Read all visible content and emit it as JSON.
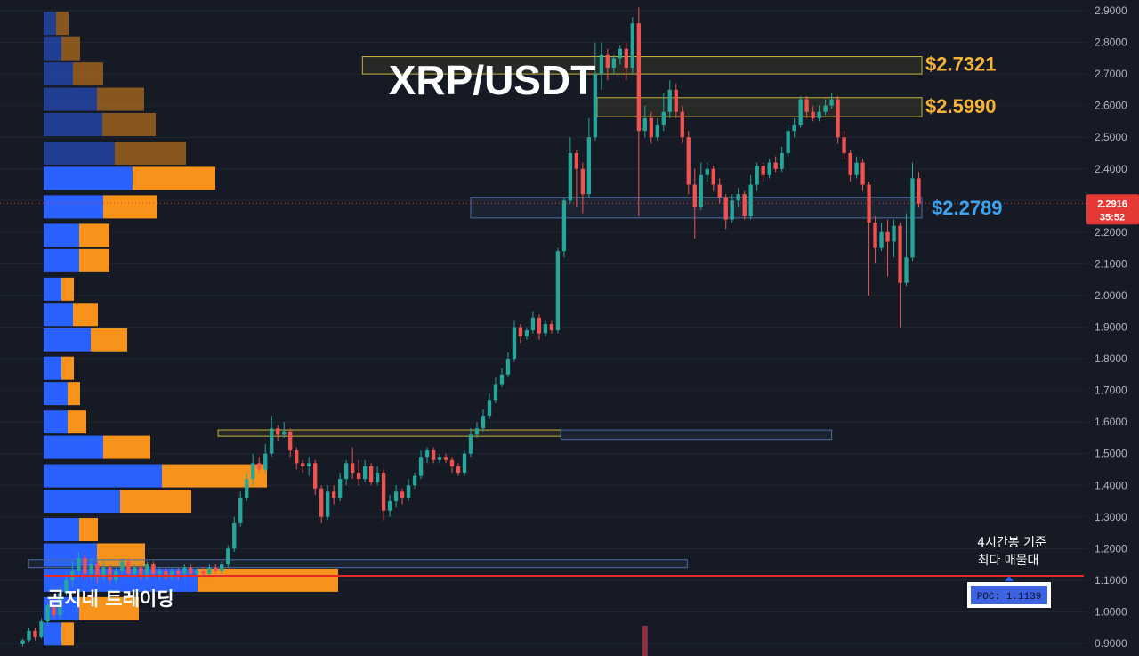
{
  "chart_data": {
    "type": "candlestick",
    "title": "XRP/USDT",
    "ylim": [
      0.88,
      2.92
    ],
    "yticks": [
      "2.9000",
      "2.8000",
      "2.7000",
      "2.6000",
      "2.5000",
      "2.4000",
      "2.3000",
      "2.2000",
      "2.1000",
      "2.0000",
      "1.9000",
      "1.8000",
      "1.7000",
      "1.6000",
      "1.5000",
      "1.4000",
      "1.3000",
      "1.2000",
      "1.1000",
      "1.0000",
      "0.9000"
    ],
    "current_price": "2.2916",
    "countdown": "35:52",
    "level_labels": [
      {
        "text": "$2.7321",
        "price": 2.7321,
        "color": "#f5b335"
      },
      {
        "text": "$2.5990",
        "price": 2.599,
        "color": "#f5b335"
      },
      {
        "text": "$2.2789",
        "price": 2.2789,
        "color": "#3ba4f0"
      }
    ],
    "zones": [
      {
        "kind": "supply",
        "top": 2.755,
        "bottom": 2.7,
        "start": 0.38
      },
      {
        "kind": "supply",
        "top": 2.625,
        "bottom": 2.565,
        "start": 0.64
      },
      {
        "kind": "support",
        "top": 2.31,
        "bottom": 2.245,
        "start": 0.5
      },
      {
        "kind": "supply",
        "top": 1.575,
        "bottom": 1.555,
        "start": 0.22,
        "end": 0.6
      },
      {
        "kind": "support",
        "top": 1.575,
        "bottom": 1.545,
        "start": 0.6,
        "end": 0.9
      },
      {
        "kind": "support",
        "top": 1.165,
        "bottom": 1.14,
        "start": 0.01,
        "end": 0.74
      }
    ],
    "poc": {
      "price": 1.1139,
      "label": "POC: 1.1139",
      "note": [
        "4시간봉 기준",
        "최다 매물대"
      ]
    },
    "volume_profile": [
      {
        "price": 2.86,
        "buy": 14,
        "sell": 14
      },
      {
        "price": 2.78,
        "buy": 20,
        "sell": 21
      },
      {
        "price": 2.7,
        "buy": 33,
        "sell": 34
      },
      {
        "price": 2.62,
        "buy": 60,
        "sell": 53
      },
      {
        "price": 2.54,
        "buy": 66,
        "sell": 60
      },
      {
        "price": 2.45,
        "buy": 80,
        "sell": 80
      },
      {
        "price": 2.37,
        "buy": 100,
        "sell": 93
      },
      {
        "price": 2.28,
        "buy": 67,
        "sell": 60
      },
      {
        "price": 2.19,
        "buy": 40,
        "sell": 34
      },
      {
        "price": 2.11,
        "buy": 40,
        "sell": 34
      },
      {
        "price": 2.02,
        "buy": 20,
        "sell": 14
      },
      {
        "price": 1.94,
        "buy": 33,
        "sell": 28
      },
      {
        "price": 1.86,
        "buy": 53,
        "sell": 41
      },
      {
        "price": 1.77,
        "buy": 20,
        "sell": 14
      },
      {
        "price": 1.69,
        "buy": 27,
        "sell": 14
      },
      {
        "price": 1.6,
        "buy": 27,
        "sell": 21
      },
      {
        "price": 1.52,
        "buy": 67,
        "sell": 53
      },
      {
        "price": 1.43,
        "buy": 133,
        "sell": 118
      },
      {
        "price": 1.35,
        "buy": 86,
        "sell": 80
      },
      {
        "price": 1.26,
        "buy": 40,
        "sell": 21
      },
      {
        "price": 1.18,
        "buy": 60,
        "sell": 54
      },
      {
        "price": 1.1,
        "buy": 173,
        "sell": 158
      },
      {
        "price": 1.01,
        "buy": 40,
        "sell": 67
      },
      {
        "price": 0.93,
        "buy": 20,
        "sell": 14
      }
    ],
    "candles": [
      [
        0.9,
        0.91,
        0.89,
        0.915
      ],
      [
        0.91,
        0.94,
        0.905,
        0.95
      ],
      [
        0.94,
        0.92,
        0.91,
        0.95
      ],
      [
        0.92,
        0.97,
        0.915,
        0.98
      ],
      [
        0.97,
        1.02,
        0.96,
        1.03
      ],
      [
        1.02,
        0.99,
        0.98,
        1.03
      ],
      [
        0.99,
        1.06,
        0.98,
        1.08
      ],
      [
        1.06,
        1.1,
        1.05,
        1.12
      ],
      [
        1.1,
        1.13,
        1.08,
        1.16
      ],
      [
        1.13,
        1.17,
        1.11,
        1.19
      ],
      [
        1.17,
        1.12,
        1.1,
        1.18
      ],
      [
        1.12,
        1.15,
        1.1,
        1.17
      ],
      [
        1.15,
        1.11,
        1.09,
        1.16
      ],
      [
        1.11,
        1.14,
        1.1,
        1.16
      ],
      [
        1.14,
        1.1,
        1.09,
        1.15
      ],
      [
        1.1,
        1.13,
        1.09,
        1.14
      ],
      [
        1.13,
        1.16,
        1.12,
        1.17
      ],
      [
        1.16,
        1.12,
        1.11,
        1.17
      ],
      [
        1.12,
        1.14,
        1.11,
        1.15
      ],
      [
        1.14,
        1.11,
        1.1,
        1.15
      ],
      [
        1.11,
        1.15,
        1.1,
        1.16
      ],
      [
        1.15,
        1.12,
        1.11,
        1.16
      ],
      [
        1.12,
        1.13,
        1.1,
        1.14
      ],
      [
        1.13,
        1.11,
        1.1,
        1.14
      ],
      [
        1.11,
        1.13,
        1.1,
        1.14
      ],
      [
        1.13,
        1.12,
        1.1,
        1.14
      ],
      [
        1.12,
        1.14,
        1.11,
        1.15
      ],
      [
        1.14,
        1.12,
        1.11,
        1.15
      ],
      [
        1.12,
        1.13,
        1.11,
        1.14
      ],
      [
        1.13,
        1.12,
        1.11,
        1.14
      ],
      [
        1.12,
        1.14,
        1.11,
        1.15
      ],
      [
        1.14,
        1.13,
        1.12,
        1.15
      ],
      [
        1.13,
        1.15,
        1.12,
        1.16
      ],
      [
        1.15,
        1.2,
        1.14,
        1.21
      ],
      [
        1.2,
        1.28,
        1.19,
        1.3
      ],
      [
        1.28,
        1.36,
        1.27,
        1.38
      ],
      [
        1.36,
        1.42,
        1.35,
        1.44
      ],
      [
        1.42,
        1.47,
        1.4,
        1.5
      ],
      [
        1.47,
        1.45,
        1.44,
        1.49
      ],
      [
        1.45,
        1.5,
        1.44,
        1.53
      ],
      [
        1.5,
        1.58,
        1.49,
        1.62
      ],
      [
        1.58,
        1.56,
        1.54,
        1.59
      ],
      [
        1.56,
        1.57,
        1.55,
        1.6
      ],
      [
        1.57,
        1.51,
        1.49,
        1.58
      ],
      [
        1.51,
        1.47,
        1.45,
        1.52
      ],
      [
        1.47,
        1.46,
        1.44,
        1.48
      ],
      [
        1.46,
        1.47,
        1.43,
        1.49
      ],
      [
        1.47,
        1.39,
        1.37,
        1.48
      ],
      [
        1.39,
        1.3,
        1.28,
        1.4
      ],
      [
        1.3,
        1.38,
        1.29,
        1.4
      ],
      [
        1.38,
        1.36,
        1.34,
        1.4
      ],
      [
        1.36,
        1.42,
        1.35,
        1.44
      ],
      [
        1.42,
        1.47,
        1.4,
        1.48
      ],
      [
        1.47,
        1.44,
        1.42,
        1.52
      ],
      [
        1.44,
        1.42,
        1.4,
        1.48
      ],
      [
        1.42,
        1.46,
        1.41,
        1.48
      ],
      [
        1.46,
        1.41,
        1.4,
        1.47
      ],
      [
        1.41,
        1.44,
        1.4,
        1.46
      ],
      [
        1.44,
        1.32,
        1.29,
        1.45
      ],
      [
        1.32,
        1.35,
        1.3,
        1.37
      ],
      [
        1.35,
        1.38,
        1.33,
        1.4
      ],
      [
        1.38,
        1.36,
        1.34,
        1.39
      ],
      [
        1.36,
        1.4,
        1.35,
        1.42
      ],
      [
        1.4,
        1.43,
        1.39,
        1.44
      ],
      [
        1.43,
        1.49,
        1.42,
        1.51
      ],
      [
        1.49,
        1.51,
        1.47,
        1.52
      ],
      [
        1.51,
        1.48,
        1.47,
        1.52
      ],
      [
        1.48,
        1.49,
        1.47,
        1.5
      ],
      [
        1.49,
        1.48,
        1.47,
        1.5
      ],
      [
        1.48,
        1.46,
        1.44,
        1.49
      ],
      [
        1.46,
        1.44,
        1.43,
        1.47
      ],
      [
        1.44,
        1.5,
        1.43,
        1.51
      ],
      [
        1.5,
        1.56,
        1.49,
        1.58
      ],
      [
        1.56,
        1.58,
        1.55,
        1.6
      ],
      [
        1.58,
        1.62,
        1.57,
        1.64
      ],
      [
        1.62,
        1.67,
        1.61,
        1.69
      ],
      [
        1.67,
        1.72,
        1.66,
        1.74
      ],
      [
        1.72,
        1.75,
        1.71,
        1.77
      ],
      [
        1.75,
        1.8,
        1.74,
        1.82
      ],
      [
        1.8,
        1.9,
        1.79,
        1.92
      ],
      [
        1.9,
        1.87,
        1.85,
        1.91
      ],
      [
        1.87,
        1.89,
        1.86,
        1.9
      ],
      [
        1.89,
        1.93,
        1.88,
        1.95
      ],
      [
        1.93,
        1.88,
        1.86,
        1.94
      ],
      [
        1.88,
        1.91,
        1.87,
        1.92
      ],
      [
        1.91,
        1.89,
        1.88,
        1.92
      ],
      [
        1.89,
        2.14,
        1.88,
        2.15
      ],
      [
        2.14,
        2.3,
        2.12,
        2.31
      ],
      [
        2.3,
        2.45,
        2.29,
        2.5
      ],
      [
        2.45,
        2.4,
        2.28,
        2.46
      ],
      [
        2.4,
        2.32,
        2.26,
        2.42
      ],
      [
        2.32,
        2.5,
        2.31,
        2.56
      ],
      [
        2.5,
        2.7,
        2.49,
        2.8
      ],
      [
        2.7,
        2.76,
        2.65,
        2.8
      ],
      [
        2.76,
        2.72,
        2.68,
        2.78
      ],
      [
        2.72,
        2.75,
        2.7,
        2.76
      ],
      [
        2.75,
        2.78,
        2.73,
        2.79
      ],
      [
        2.78,
        2.72,
        2.68,
        2.8
      ],
      [
        2.72,
        2.86,
        2.7,
        2.88
      ],
      [
        2.86,
        2.52,
        2.25,
        2.91
      ],
      [
        2.52,
        2.56,
        2.5,
        2.6
      ],
      [
        2.56,
        2.5,
        2.48,
        2.58
      ],
      [
        2.5,
        2.54,
        2.49,
        2.56
      ],
      [
        2.54,
        2.58,
        2.52,
        2.64
      ],
      [
        2.58,
        2.65,
        2.56,
        2.68
      ],
      [
        2.65,
        2.58,
        2.56,
        2.67
      ],
      [
        2.58,
        2.5,
        2.48,
        2.6
      ],
      [
        2.5,
        2.35,
        2.32,
        2.52
      ],
      [
        2.35,
        2.28,
        2.18,
        2.4
      ],
      [
        2.28,
        2.38,
        2.27,
        2.42
      ],
      [
        2.38,
        2.4,
        2.36,
        2.42
      ],
      [
        2.4,
        2.35,
        2.33,
        2.41
      ],
      [
        2.35,
        2.31,
        2.29,
        2.37
      ],
      [
        2.31,
        2.24,
        2.21,
        2.32
      ],
      [
        2.24,
        2.3,
        2.23,
        2.32
      ],
      [
        2.3,
        2.32,
        2.28,
        2.34
      ],
      [
        2.32,
        2.25,
        2.24,
        2.33
      ],
      [
        2.25,
        2.35,
        2.24,
        2.38
      ],
      [
        2.35,
        2.41,
        2.33,
        2.42
      ],
      [
        2.41,
        2.38,
        2.36,
        2.42
      ],
      [
        2.38,
        2.42,
        2.37,
        2.43
      ],
      [
        2.42,
        2.4,
        2.39,
        2.44
      ],
      [
        2.4,
        2.45,
        2.39,
        2.47
      ],
      [
        2.45,
        2.52,
        2.44,
        2.54
      ],
      [
        2.52,
        2.54,
        2.5,
        2.56
      ],
      [
        2.54,
        2.62,
        2.53,
        2.63
      ],
      [
        2.62,
        2.58,
        2.56,
        2.63
      ],
      [
        2.58,
        2.56,
        2.55,
        2.6
      ],
      [
        2.56,
        2.58,
        2.55,
        2.6
      ],
      [
        2.58,
        2.6,
        2.57,
        2.62
      ],
      [
        2.6,
        2.62,
        2.59,
        2.64
      ],
      [
        2.62,
        2.5,
        2.48,
        2.63
      ],
      [
        2.5,
        2.45,
        2.43,
        2.52
      ],
      [
        2.45,
        2.38,
        2.36,
        2.46
      ],
      [
        2.38,
        2.42,
        2.37,
        2.44
      ],
      [
        2.42,
        2.35,
        2.33,
        2.43
      ],
      [
        2.35,
        2.23,
        2.0,
        2.36
      ],
      [
        2.23,
        2.15,
        2.1,
        2.25
      ],
      [
        2.15,
        2.2,
        2.14,
        2.23
      ],
      [
        2.2,
        2.17,
        2.06,
        2.24
      ],
      [
        2.17,
        2.22,
        2.12,
        2.24
      ],
      [
        2.22,
        2.04,
        1.9,
        2.23
      ],
      [
        2.04,
        2.12,
        2.03,
        2.26
      ],
      [
        2.12,
        2.37,
        2.11,
        2.42
      ],
      [
        2.37,
        2.29,
        2.28,
        2.39
      ]
    ],
    "volume_bars": [
      {
        "index": 100,
        "value": 1
      }
    ]
  },
  "brand": "곰지네 트레이딩",
  "colors": {
    "up": "#26a69a",
    "down": "#ef5350",
    "buy": "#2962ff",
    "sell": "#f7931a",
    "grid": "#1f2433",
    "poc": "#e52a2a",
    "price_tag": "#e53935"
  }
}
